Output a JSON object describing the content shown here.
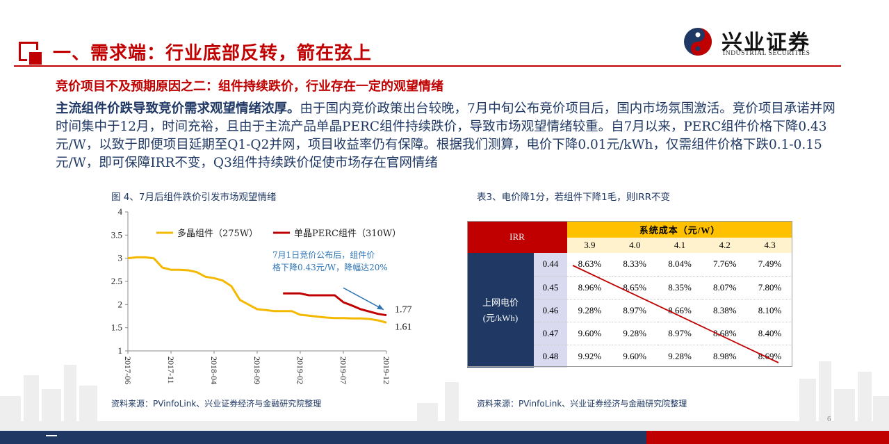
{
  "colors": {
    "brand_red": "#c00000",
    "navy": "#1f3864",
    "gold": "#ffc000",
    "series_polysilicon": "#f5b800",
    "series_perc": "#c00000",
    "annotation_blue": "#2e75b6"
  },
  "header": {
    "title": "一、需求端：行业底部反转，箭在弦上",
    "logo_cn": "兴业证券",
    "logo_en": "INDUSTRIAL SECURITIES"
  },
  "subheading": "竞价项目不及预期原因之二：组件持续跌价，行业存在一定的观望情绪",
  "body": {
    "lead": "主流组件价跌导致竞价需求观望情绪浓厚。",
    "text": "由于国内竞价政策出台较晚，7月中旬公布竞价项目后，国内市场氛围激活。竞价项目承诺并网时间集中于12月，时间充裕，且由于主流产品单晶PERC组件持续跌价，导致市场观望情绪较重。自7月以来，PERC组件价格下降0.43元/W，以致于即便项目延期至Q1-Q2并网，项目收益率仍有保障。根据我们测算，电价下降0.01元/kWh，仅需组件价格下跌0.1-0.15元/W，即可保障IRR不变，Q3组件持续跌价促使市场存在官网情绪"
  },
  "figure": {
    "caption": "图 4、7月后组件跌价引发市场观望情绪",
    "source": "资料来源：PVinfoLink、兴业证券经济与金融研究院整理"
  },
  "chart_data": {
    "type": "line",
    "title": "",
    "xlabel": "",
    "ylabel": "",
    "ylim": [
      1,
      4
    ],
    "yticks": [
      "1",
      "1.5",
      "2",
      "2.5",
      "3",
      "3.5",
      "4"
    ],
    "x_ticks": [
      "2017-06",
      "2017-11",
      "2018-04",
      "2018-09",
      "2019-02",
      "2019-07",
      "2019-12"
    ],
    "x_range": [
      "2017-06",
      "2019-12"
    ],
    "grid": false,
    "legend_position": "top",
    "series": [
      {
        "name": "多晶组件（275W）",
        "color": "#f5b800",
        "points": [
          [
            "2017-06",
            3.0
          ],
          [
            "2017-07",
            3.02
          ],
          [
            "2017-08",
            3.02
          ],
          [
            "2017-09",
            3.0
          ],
          [
            "2017-10",
            2.8
          ],
          [
            "2017-11",
            2.75
          ],
          [
            "2017-12",
            2.75
          ],
          [
            "2018-01",
            2.74
          ],
          [
            "2018-02",
            2.7
          ],
          [
            "2018-03",
            2.6
          ],
          [
            "2018-04",
            2.57
          ],
          [
            "2018-05",
            2.52
          ],
          [
            "2018-06",
            2.4
          ],
          [
            "2018-07",
            2.1
          ],
          [
            "2018-08",
            2.0
          ],
          [
            "2018-09",
            1.9
          ],
          [
            "2018-10",
            1.88
          ],
          [
            "2018-11",
            1.86
          ],
          [
            "2018-12",
            1.86
          ],
          [
            "2019-01",
            1.86
          ],
          [
            "2019-02",
            1.78
          ],
          [
            "2019-03",
            1.76
          ],
          [
            "2019-04",
            1.74
          ],
          [
            "2019-05",
            1.72
          ],
          [
            "2019-06",
            1.71
          ],
          [
            "2019-07",
            1.71
          ],
          [
            "2019-08",
            1.7
          ],
          [
            "2019-09",
            1.7
          ],
          [
            "2019-10",
            1.69
          ],
          [
            "2019-11",
            1.66
          ],
          [
            "2019-12",
            1.61
          ]
        ],
        "end_label": "1.61"
      },
      {
        "name": "单晶PERC组件（310W）",
        "color": "#c00000",
        "points": [
          [
            "2018-12",
            2.24
          ],
          [
            "2019-01",
            2.24
          ],
          [
            "2019-02",
            2.24
          ],
          [
            "2019-03",
            2.2
          ],
          [
            "2019-04",
            2.2
          ],
          [
            "2019-05",
            2.2
          ],
          [
            "2019-06",
            2.2
          ],
          [
            "2019-07",
            2.05
          ],
          [
            "2019-08",
            1.98
          ],
          [
            "2019-09",
            1.9
          ],
          [
            "2019-10",
            1.85
          ],
          [
            "2019-11",
            1.8
          ],
          [
            "2019-12",
            1.77
          ]
        ],
        "end_label": "1.77"
      }
    ],
    "annotations": [
      {
        "text_line1": "7月1日竞价公布后，组件价",
        "text_line2": "格下降0.43元/W，降幅达20%",
        "arrow_from": [
          "2019-07",
          2.36
        ],
        "arrow_to": [
          "2019-12",
          1.8
        ]
      }
    ]
  },
  "table": {
    "caption": "表3、电价降1分，若组件下降1毛，则IRR不变",
    "source": "资料来源：PVinfoLink、兴业证券经济与金融研究院整理",
    "corner_label": "IRR",
    "cost_header": "系统成本（元/W）",
    "cost_values": [
      "3.9",
      "4.0",
      "4.1",
      "4.2",
      "4.3"
    ],
    "row_header_line1": "上网电价",
    "row_header_line2": "(元/kWh)",
    "rows": [
      {
        "price": "0.44",
        "irr": [
          "8.63%",
          "8.33%",
          "8.04%",
          "7.76%",
          "7.49%"
        ]
      },
      {
        "price": "0.45",
        "irr": [
          "8.96%",
          "8.65%",
          "8.35%",
          "8.07%",
          "7.80%"
        ]
      },
      {
        "price": "0.46",
        "irr": [
          "9.28%",
          "8.97%",
          "8.66%",
          "8.38%",
          "8.10%"
        ]
      },
      {
        "price": "0.47",
        "irr": [
          "9.60%",
          "9.28%",
          "8.97%",
          "8.68%",
          "8.40%"
        ]
      },
      {
        "price": "0.48",
        "irr": [
          "9.92%",
          "9.60%",
          "9.28%",
          "8.98%",
          "8.69%"
        ]
      }
    ]
  },
  "page_number": "6"
}
